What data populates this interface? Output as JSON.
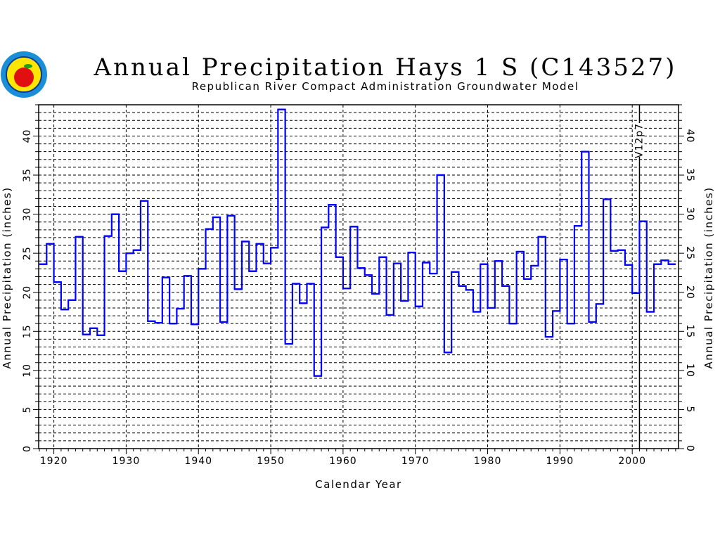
{
  "chart_data": {
    "type": "line",
    "style": "step",
    "title": "Annual Precipitation Hays 1 S (C143527)",
    "subtitle": "Republican River Compact Administration Groundwater Model",
    "xlabel": "Calendar Year",
    "ylabel": "Annual Precipitation (inches)",
    "ylabel_right": "Annual Precipitation (inches)",
    "xlim": [
      1917.9,
      2006.4
    ],
    "ylim": [
      0,
      44
    ],
    "xticks": [
      1920,
      1930,
      1940,
      1950,
      1960,
      1970,
      1980,
      1990,
      2000
    ],
    "yticks": [
      0,
      5,
      10,
      15,
      20,
      25,
      30,
      35,
      40
    ],
    "grid": true,
    "line_color": "#0000ff",
    "marker_line": {
      "x": 2001,
      "label": "V12p7"
    },
    "x": [
      1918,
      1919,
      1920,
      1921,
      1922,
      1923,
      1924,
      1925,
      1926,
      1927,
      1928,
      1929,
      1930,
      1931,
      1932,
      1933,
      1934,
      1935,
      1936,
      1937,
      1938,
      1939,
      1940,
      1941,
      1942,
      1943,
      1944,
      1945,
      1946,
      1947,
      1948,
      1949,
      1950,
      1951,
      1952,
      1953,
      1954,
      1955,
      1956,
      1957,
      1958,
      1959,
      1960,
      1961,
      1962,
      1963,
      1964,
      1965,
      1966,
      1967,
      1968,
      1969,
      1970,
      1971,
      1972,
      1973,
      1974,
      1975,
      1976,
      1977,
      1978,
      1979,
      1980,
      1981,
      1982,
      1983,
      1984,
      1985,
      1986,
      1987,
      1988,
      1989,
      1990,
      1991,
      1992,
      1993,
      1994,
      1995,
      1996,
      1997,
      1998,
      1999,
      2000,
      2001,
      2002,
      2003,
      2004,
      2005
    ],
    "values": [
      23.6,
      26.2,
      21.3,
      17.8,
      19.0,
      27.1,
      14.6,
      15.4,
      14.5,
      27.2,
      30.0,
      22.7,
      25.0,
      25.4,
      31.7,
      16.3,
      16.1,
      21.9,
      16.0,
      17.9,
      22.1,
      15.9,
      23.0,
      28.1,
      29.6,
      16.2,
      29.8,
      20.4,
      26.5,
      22.7,
      26.2,
      23.7,
      25.7,
      43.4,
      13.4,
      21.1,
      18.6,
      21.1,
      9.3,
      28.3,
      31.2,
      24.5,
      20.5,
      28.4,
      23.1,
      22.2,
      19.8,
      24.5,
      17.1,
      23.7,
      18.9,
      25.1,
      18.2,
      23.8,
      22.4,
      35.0,
      12.3,
      22.6,
      20.8,
      20.3,
      17.5,
      23.6,
      18.0,
      24.0,
      20.8,
      16.0,
      25.2,
      21.7,
      23.4,
      27.1,
      14.3,
      17.6,
      24.2,
      16.0,
      28.5,
      38.0,
      16.2,
      18.5,
      31.9,
      25.3,
      25.4,
      23.5,
      19.9,
      29.1,
      17.5,
      23.6,
      24.1,
      23.6
    ]
  }
}
